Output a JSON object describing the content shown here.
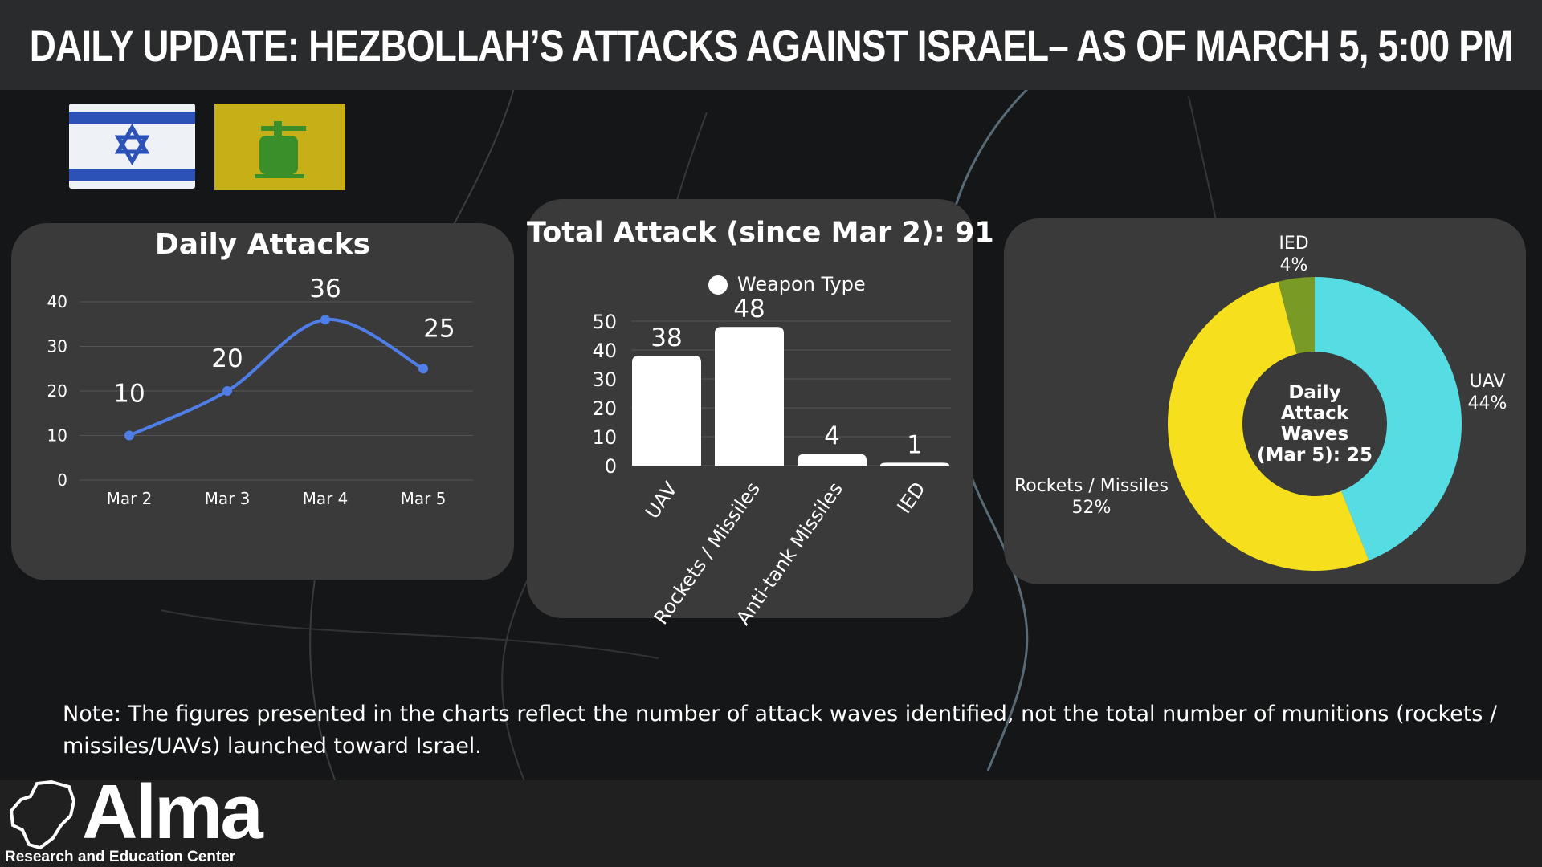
{
  "header": {
    "title": "DAILY UPDATE: HEZBOLLAH’S ATTACKS AGAINST ISRAEL– AS OF MARCH 5, 5:00 PM"
  },
  "flags": [
    {
      "name": "Israel flag",
      "colors": [
        "#ffffff",
        "#2c52b8"
      ]
    },
    {
      "name": "Hezbollah flag",
      "colors": [
        "#c6af17",
        "#3a8f2a"
      ]
    }
  ],
  "chart_data": [
    {
      "type": "line",
      "title": "Daily Attacks",
      "categories": [
        "Mar 2",
        "Mar 3",
        "Mar 4",
        "Mar 5"
      ],
      "values": [
        10,
        20,
        36,
        25
      ],
      "yticks": [
        0,
        10,
        20,
        30,
        40
      ],
      "ylim": [
        0,
        40
      ],
      "grid": true,
      "color": "#4f7ee8"
    },
    {
      "type": "bar",
      "title": "Total Attack (since Mar 2): 91",
      "legend": "Weapon Type",
      "legend_position": "top",
      "categories": [
        "UAV",
        "Rockets / Missiles",
        "Anti-tank Missiles",
        "IED"
      ],
      "values": [
        38,
        48,
        4,
        1
      ],
      "yticks": [
        0,
        10,
        20,
        30,
        40,
        50
      ],
      "ylim": [
        0,
        50
      ],
      "grid": true,
      "color": "#ffffff"
    },
    {
      "type": "pie",
      "style": "donut",
      "center_label": [
        "Daily",
        "Attack",
        "Waves",
        "(Mar 5): 25"
      ],
      "slices": [
        {
          "label": "UAV",
          "value": 44,
          "value_label": "44%",
          "color": "#56dde3"
        },
        {
          "label": "Rockets / Missiles",
          "value": 52,
          "value_label": "52%",
          "color": "#f6df1c"
        },
        {
          "label": "IED",
          "value": 4,
          "value_label": "4%",
          "color": "#7a9a26"
        }
      ]
    }
  ],
  "note": "Note: The figures presented in the charts reflect the number of attack waves identified, not the total number of munitions (rockets / missiles/UAVs) launched toward Israel.",
  "footer": {
    "logo_name": "Alma",
    "logo_subtitle": "Research and Education Center"
  }
}
